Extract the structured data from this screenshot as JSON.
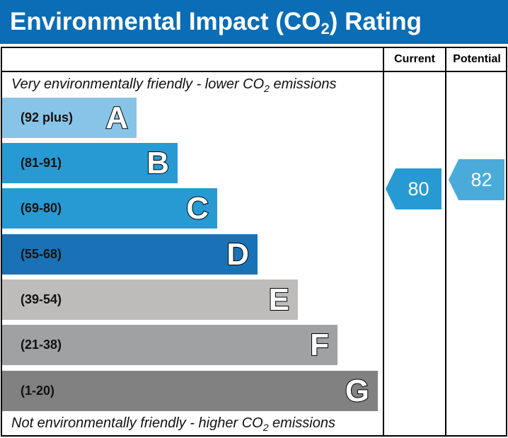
{
  "header": {
    "title_pre": "Environmental Impact (CO",
    "title_sub": "2",
    "title_post": ") Rating"
  },
  "columns": {
    "current": "Current",
    "potential": "Potential"
  },
  "notes": {
    "top_pre": "Very environmentally friendly - lower CO",
    "top_sub": "2",
    "top_post": " emissions",
    "bottom_pre": "Not environmentally friendly - higher CO",
    "bottom_sub": "2",
    "bottom_post": " emissions"
  },
  "chart_data": {
    "type": "bar",
    "categories": [
      "A",
      "B",
      "C",
      "D",
      "E",
      "F",
      "G"
    ],
    "ranges": [
      "(92 plus)",
      "(81-91)",
      "(69-80)",
      "(55-68)",
      "(39-54)",
      "(21-38)",
      "(1-20)"
    ],
    "colors": [
      "#88c4e7",
      "#279ad3",
      "#279ad3",
      "#1a72b6",
      "#bdbcba",
      "#a0a1a3",
      "#818181"
    ],
    "current": {
      "value": "80",
      "color": "#279ad3"
    },
    "potential": {
      "value": "82",
      "color": "#4aabdb"
    }
  }
}
